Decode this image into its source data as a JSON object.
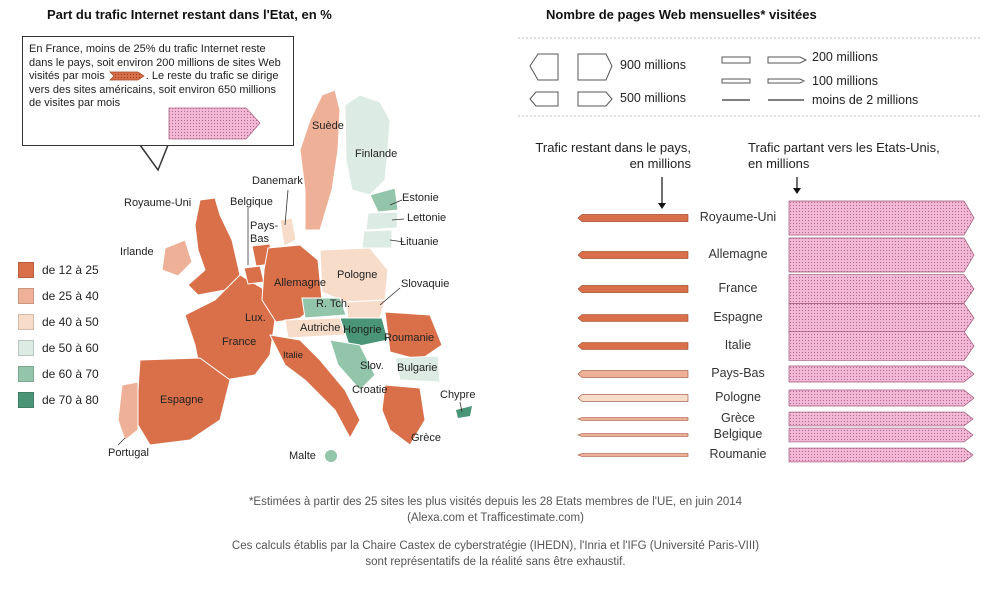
{
  "map": {
    "title": "Part du trafic Internet restant dans l'Etat, en %",
    "callout": {
      "text1": "En France, moins de 25% du trafic Internet reste dans le pays, soit environ 200 millions de sites Web visités par mois",
      "text2": ". Le reste du trafic se dirige vers des sites américains, soit environ 650 millions de visites par mois"
    },
    "legend": [
      {
        "label": "de 12 à 25",
        "color": "#d9704a"
      },
      {
        "label": "de 25 à 40",
        "color": "#eeb197"
      },
      {
        "label": "de 40 à 50",
        "color": "#f8dcca"
      },
      {
        "label": "de 50 à 60",
        "color": "#dcebe3"
      },
      {
        "label": "de 60 à 70",
        "color": "#93c5aa"
      },
      {
        "label": "de 70 à 80",
        "color": "#4a9577"
      }
    ],
    "countries": {
      "suede": "Suède",
      "finlande": "Finlande",
      "estonie": "Estonie",
      "lettonie": "Lettonie",
      "lituanie": "Lituanie",
      "danemark": "Danemark",
      "royaume_uni": "Royaume-Uni",
      "belgique": "Belgique",
      "pays_bas": "Pays-\nBas",
      "irlande": "Irlande",
      "allemagne": "Allemagne",
      "pologne": "Pologne",
      "slovaquie": "Slovaquie",
      "r_tch": "R. Tch.",
      "lux": "Lux.",
      "autriche": "Autriche",
      "hongrie": "Hongrie",
      "roumanie": "Roumanie",
      "france": "France",
      "italie": "Italie",
      "slov": "Slov.",
      "bulgarie": "Bulgarie",
      "croatie": "Croatie",
      "chypre": "Chypre",
      "espagne": "Espagne",
      "portugal": "Portugal",
      "malte": "Malte",
      "grece": "Grèce"
    }
  },
  "pages": {
    "title": "Nombre de pages Web mensuelles* visitées",
    "size_legend": [
      "900 millions",
      "500 millions",
      "200 millions",
      "100 millions",
      "moins de 2 millions"
    ],
    "col_left_header": "Trafic restant dans le pays,\nen millions",
    "col_right_header": "Trafic partant vers les Etats-Unis,\nen millions"
  },
  "chart_data": {
    "type": "bar",
    "title": "Nombre de pages Web mensuelles* visitées",
    "categories": [
      "Royaume-Uni",
      "Allemagne",
      "France",
      "Espagne",
      "Italie",
      "Pays-Bas",
      "Pologne",
      "Grèce",
      "Belgique",
      "Roumanie"
    ],
    "series": [
      {
        "name": "Trafic restant dans le pays, en millions",
        "values": [
          200,
          190,
          200,
          180,
          180,
          180,
          180,
          20,
          20,
          20
        ],
        "colors": [
          "#d9704a",
          "#d9704a",
          "#d9704a",
          "#d9704a",
          "#d9704a",
          "#eeb197",
          "#f8dcca",
          "#eeb197",
          "#eeb197",
          "#eeb197"
        ]
      },
      {
        "name": "Trafic partant vers les Etats-Unis, en millions",
        "values": [
          900,
          900,
          650,
          650,
          650,
          200,
          200,
          150,
          150,
          150
        ],
        "color": "#f3b9d6"
      }
    ]
  },
  "footnotes": {
    "line1": "*Estimées à partir des 25 sites les plus visités depuis les 28 Etats membres de l'UE, en juin 2014",
    "line2": "(Alexa.com et Trafficestimate.com)",
    "line3": "Ces calculs établis par la Chaire Castex de cyberstratégie (IHEDN), l'Inria et l'IFG (Université Paris-VIII)",
    "line4": "sont représentatifs de la réalité sans être exhaustif."
  }
}
